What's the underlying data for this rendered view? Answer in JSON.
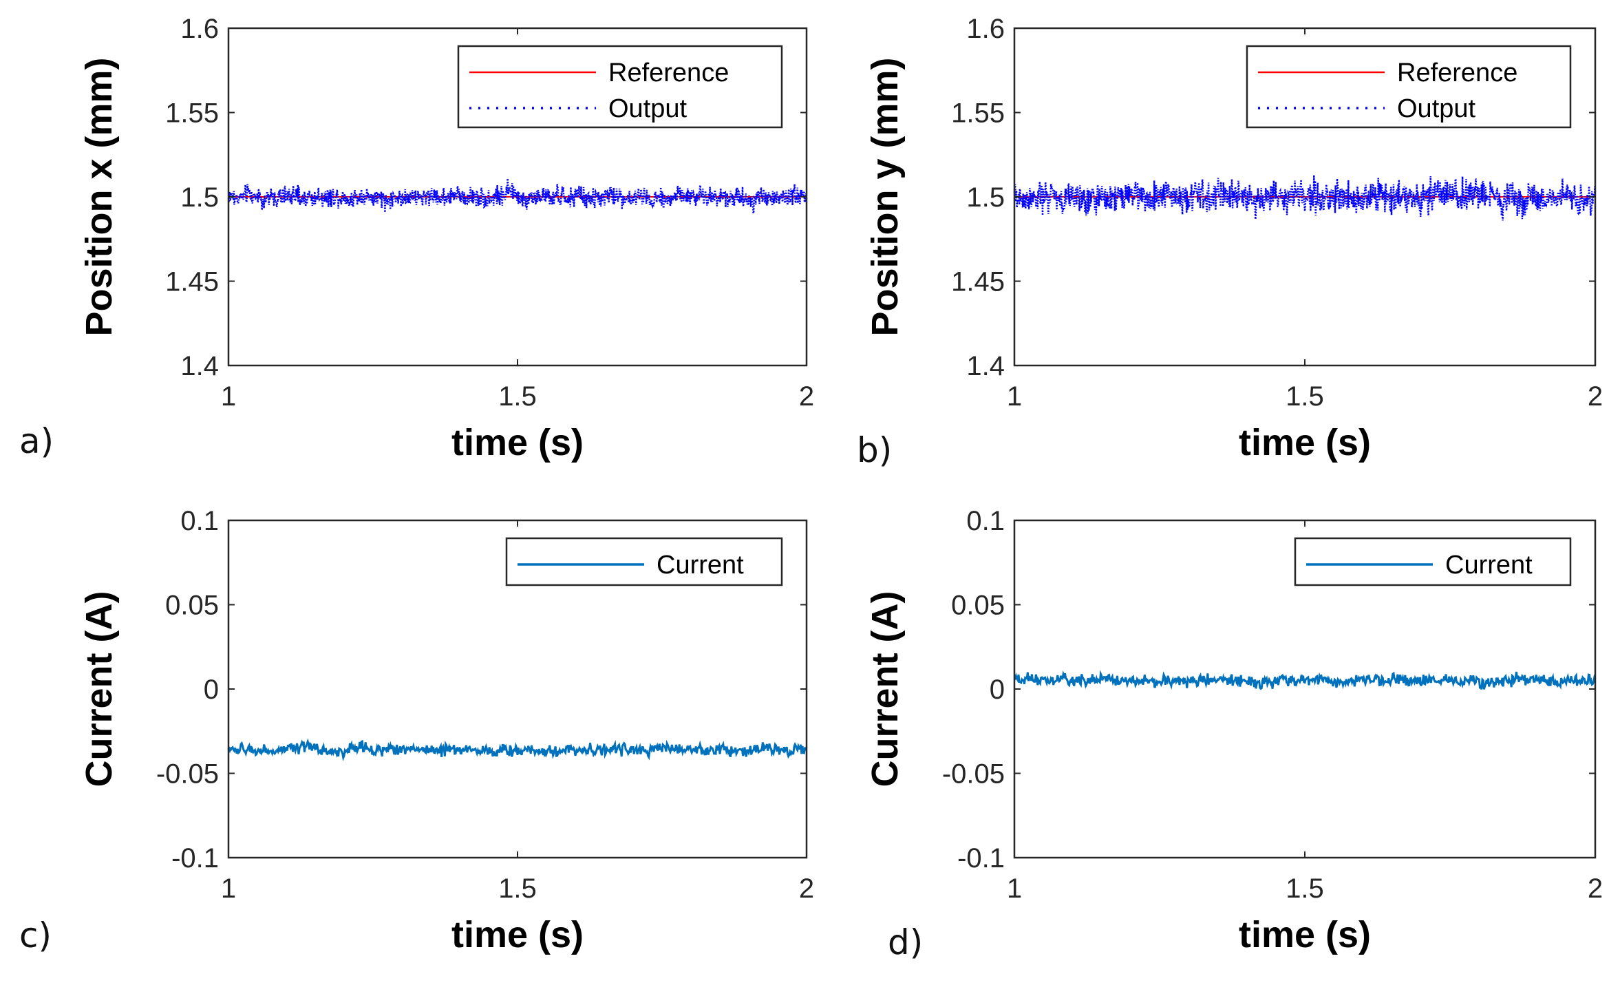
{
  "chart_data": [
    {
      "panel": "a)",
      "type": "line",
      "xlabel": "time (s)",
      "ylabel": "Position x (mm)",
      "xlim": [
        1,
        2
      ],
      "ylim": [
        1.4,
        1.6
      ],
      "xticks": [
        "1",
        "1.5",
        "2"
      ],
      "yticks": [
        "1.4",
        "1.45",
        "1.5",
        "1.55",
        "1.6"
      ],
      "legend_position": "top-right",
      "series": [
        {
          "name": "Reference",
          "style": "solid",
          "color": "#ff0000",
          "constant": 1.5
        },
        {
          "name": "Output",
          "style": "dotted",
          "color": "#0000ff",
          "mean": 1.5,
          "noise_amplitude": 0.005,
          "min": 1.482,
          "max": 1.513
        }
      ]
    },
    {
      "panel": "b)",
      "type": "line",
      "xlabel": "time (s)",
      "ylabel": "Position y (mm)",
      "xlim": [
        1,
        2
      ],
      "ylim": [
        1.4,
        1.6
      ],
      "xticks": [
        "1",
        "1.5",
        "2"
      ],
      "yticks": [
        "1.4",
        "1.45",
        "1.5",
        "1.55",
        "1.6"
      ],
      "legend_position": "top-right",
      "series": [
        {
          "name": "Reference",
          "style": "solid",
          "color": "#ff0000",
          "constant": 1.5
        },
        {
          "name": "Output",
          "style": "dotted",
          "color": "#0000ff",
          "mean": 1.5,
          "noise_amplitude": 0.008,
          "min": 1.486,
          "max": 1.514
        }
      ]
    },
    {
      "panel": "c)",
      "type": "line",
      "xlabel": "time (s)",
      "ylabel": "Current (A)",
      "xlim": [
        1,
        2
      ],
      "ylim": [
        -0.1,
        0.1
      ],
      "xticks": [
        "1",
        "1.5",
        "2"
      ],
      "yticks": [
        "-0.1",
        "-0.05",
        "0",
        "0.05",
        "0.1"
      ],
      "legend_position": "top-right",
      "series": [
        {
          "name": "Current",
          "style": "solid",
          "color": "#0072bd",
          "mean": -0.036,
          "noise_amplitude": 0.003,
          "min": -0.045,
          "max": -0.028
        }
      ]
    },
    {
      "panel": "d)",
      "type": "line",
      "xlabel": "time (s)",
      "ylabel": "Current (A)",
      "xlim": [
        1,
        2
      ],
      "ylim": [
        -0.1,
        0.1
      ],
      "xticks": [
        "1",
        "1.5",
        "2"
      ],
      "yticks": [
        "-0.1",
        "-0.05",
        "0",
        "0.05",
        "0.1"
      ],
      "legend_position": "top-right",
      "series": [
        {
          "name": "Current",
          "style": "solid",
          "color": "#0072bd",
          "mean": 0.005,
          "noise_amplitude": 0.003,
          "min": -0.004,
          "max": 0.013
        }
      ]
    }
  ]
}
